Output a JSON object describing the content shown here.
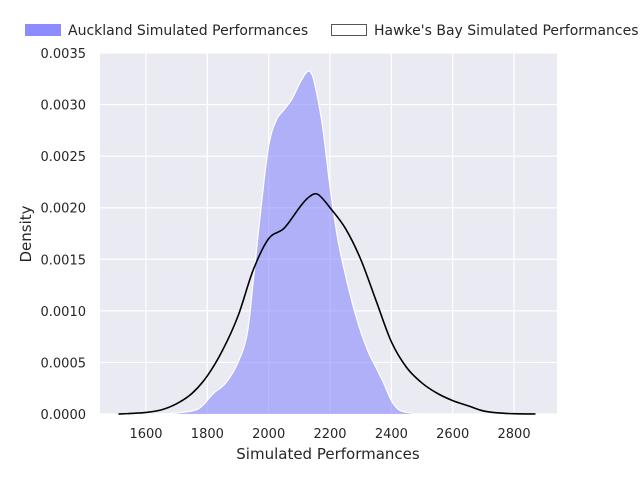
{
  "chart_data": {
    "type": "area",
    "xlabel": "Simulated Performances",
    "ylabel": "Density",
    "xlim": [
      1450,
      2940
    ],
    "ylim": [
      0,
      0.0035
    ],
    "x_ticks": [
      1600,
      1800,
      2000,
      2200,
      2400,
      2600,
      2800
    ],
    "x_tick_labels": [
      "1600",
      "1800",
      "2000",
      "2200",
      "2400",
      "2600",
      "2800"
    ],
    "y_ticks": [
      0,
      0.0005,
      0.001,
      0.0015,
      0.002,
      0.0025,
      0.003,
      0.0035
    ],
    "y_tick_labels": [
      "0.0000",
      "0.0005",
      "0.0010",
      "0.0015",
      "0.0020",
      "0.0025",
      "0.0030",
      "0.0035"
    ],
    "grid": true,
    "legend_position": "top",
    "series": [
      {
        "name": "Auckland Simulated Performances",
        "style": "filled",
        "color": "#8080ff",
        "x": [
          1550,
          1650,
          1700,
          1750,
          1780,
          1820,
          1860,
          1900,
          1930,
          1950,
          1975,
          2000,
          2025,
          2050,
          2075,
          2100,
          2120,
          2135,
          2150,
          2175,
          2200,
          2225,
          2250,
          2275,
          2300,
          2325,
          2350,
          2375,
          2400,
          2425,
          2460,
          2500
        ],
        "y": [
          0,
          0,
          1e-05,
          3e-05,
          7e-05,
          0.0002,
          0.0003,
          0.0005,
          0.00078,
          0.0013,
          0.002,
          0.0026,
          0.00285,
          0.00295,
          0.00305,
          0.0032,
          0.0033,
          0.00332,
          0.0032,
          0.0028,
          0.0022,
          0.0017,
          0.00135,
          0.00105,
          0.0008,
          0.0006,
          0.00045,
          0.0003,
          0.00013,
          4e-05,
          1e-05,
          0
        ]
      },
      {
        "name": "Hawke's Bay Simulated Performances",
        "style": "line",
        "color": "#000000",
        "x": [
          1510,
          1550,
          1600,
          1650,
          1700,
          1750,
          1800,
          1850,
          1900,
          1950,
          2000,
          2050,
          2100,
          2130,
          2160,
          2200,
          2250,
          2300,
          2350,
          2400,
          2450,
          2500,
          2550,
          2600,
          2650,
          2700,
          2750,
          2800,
          2870
        ],
        "y": [
          0,
          5e-06,
          1.5e-05,
          4e-05,
          0.0001,
          0.0002,
          0.00037,
          0.00062,
          0.00095,
          0.0014,
          0.0017,
          0.0018,
          0.002,
          0.0021,
          0.00213,
          0.002,
          0.0018,
          0.0015,
          0.0011,
          0.0007,
          0.00045,
          0.0003,
          0.0002,
          0.00013,
          8e-05,
          3e-05,
          1e-05,
          3e-06,
          0
        ]
      }
    ]
  }
}
